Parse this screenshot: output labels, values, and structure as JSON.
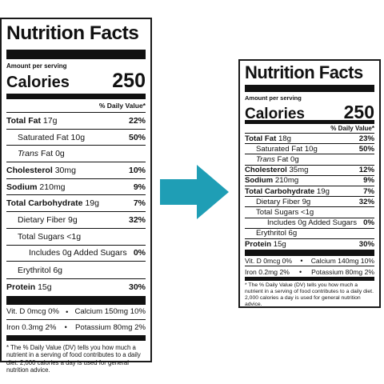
{
  "left": {
    "title": "Nutrition Facts",
    "amount_per_serving": "Amount per serving",
    "calories_label": "Calories",
    "calories_value": "250",
    "daily_value_header": "% Daily Value*",
    "total_fat": {
      "label": "Total Fat",
      "amount": "17g",
      "pct": "22%"
    },
    "saturated_fat": {
      "label": "Saturated Fat",
      "amount": "10g",
      "pct": "50%"
    },
    "trans_fat": {
      "label": "Trans",
      "suffix": " Fat 0g"
    },
    "cholesterol": {
      "label": "Cholesterol",
      "amount": "30mg",
      "pct": "10%"
    },
    "sodium": {
      "label": "Sodium",
      "amount": "210mg",
      "pct": "9%"
    },
    "total_carb": {
      "label": "Total Carbohydrate",
      "amount": "19g",
      "pct": "7%"
    },
    "dietary_fiber": {
      "label": "Dietary Fiber",
      "amount": "9g",
      "pct": "32%"
    },
    "total_sugars": {
      "label": "Total Sugars <1g"
    },
    "added_sugars": {
      "label": "Includes 0g Added Sugars",
      "pct": "0%"
    },
    "erythritol": {
      "label": "Erythritol 6g"
    },
    "protein": {
      "label": "Protein",
      "amount": "15g",
      "pct": "30%"
    },
    "vit_d": "Vit. D 0mcg 0%",
    "calcium": "Calcium 150mg 10%",
    "iron": "Iron 0.3mg 2%",
    "potassium": "Potassium 80mg 2%",
    "footnote": "* The % Daily Value (DV) tells you how much a nutrient in a serving of food contributes to a daily diet. 2,000 calories a day is used for general nutrition advice."
  },
  "right": {
    "title": "Nutrition Facts",
    "amount_per_serving": "Amount per serving",
    "calories_label": "Calories",
    "calories_value": "250",
    "daily_value_header": "% Daily Value*",
    "total_fat": {
      "label": "Total Fat",
      "amount": "18g",
      "pct": "23%"
    },
    "saturated_fat": {
      "label": "Saturated Fat",
      "amount": "10g",
      "pct": "50%"
    },
    "trans_fat": {
      "label": "Trans",
      "suffix": " Fat 0g"
    },
    "cholesterol": {
      "label": "Cholesterol",
      "amount": "35mg",
      "pct": "12%"
    },
    "sodium": {
      "label": "Sodium",
      "amount": "210mg",
      "pct": "9%"
    },
    "total_carb": {
      "label": "Total Carbohydrate",
      "amount": "19g",
      "pct": "7%"
    },
    "dietary_fiber": {
      "label": "Dietary Fiber",
      "amount": "9g",
      "pct": "32%"
    },
    "total_sugars": {
      "label": "Total Sugars <1g"
    },
    "added_sugars": {
      "label": "Includes 0g Added Sugars",
      "pct": "0%"
    },
    "erythritol": {
      "label": "Erythritol 6g"
    },
    "protein": {
      "label": "Protein",
      "amount": "15g",
      "pct": "30%"
    },
    "vit_d": "Vit. D 0mcg 0%",
    "calcium": "Calcium 140mg 10%",
    "iron": "Iron 0.2mg 2%",
    "potassium": "Potassium 80mg 2%",
    "footnote": "* The % Daily Value (DV) tells you how much a nutrient in a serving of food contributes to a daily diet. 2,000 calories a day is used for general nutrition advice."
  },
  "arrow": {
    "icon": "right-arrow-icon",
    "color": "#1f9eb5"
  },
  "separator": "•"
}
